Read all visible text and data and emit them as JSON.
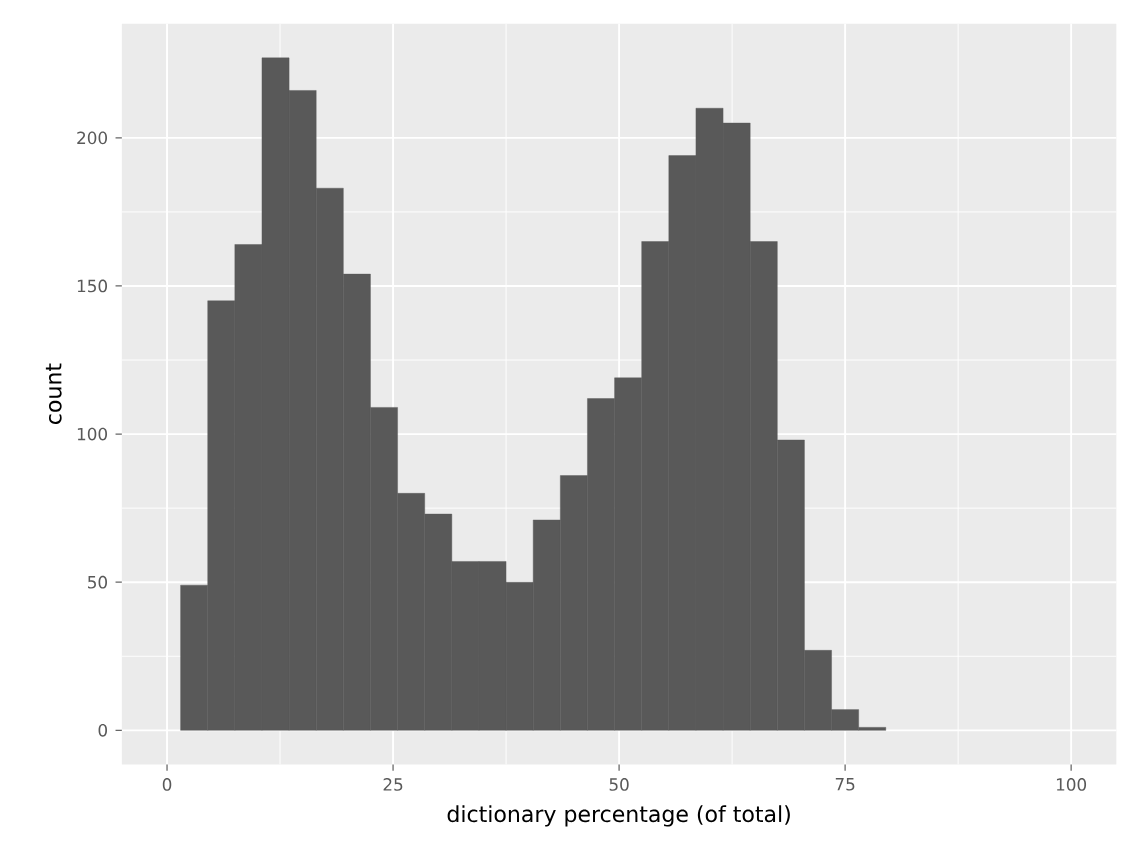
{
  "chart_data": {
    "type": "histogram",
    "xlabel": "dictionary percentage (of total)",
    "ylabel": "count",
    "bins": [
      1.5,
      4.5,
      7.5,
      10.5,
      13.5,
      16.5,
      19.5,
      22.5,
      25.5,
      28.5,
      31.5,
      34.5,
      37.5,
      40.5,
      43.5,
      46.5,
      49.5,
      52.5,
      55.5,
      58.5,
      61.5,
      64.5,
      67.5,
      70.5,
      73.5,
      76.5,
      79.5
    ],
    "values": [
      49,
      145,
      164,
      227,
      216,
      183,
      154,
      109,
      80,
      73,
      57,
      57,
      50,
      71,
      86,
      112,
      119,
      165,
      194,
      210,
      205,
      165,
      98,
      27,
      7,
      1
    ],
    "color": "#595959",
    "xlim": [
      -5,
      105
    ],
    "ylim": [
      -11.5,
      238.5
    ],
    "xticks": [
      0,
      25,
      50,
      75,
      100
    ],
    "yticks": [
      0,
      50,
      100,
      150,
      200
    ],
    "grid": true
  }
}
